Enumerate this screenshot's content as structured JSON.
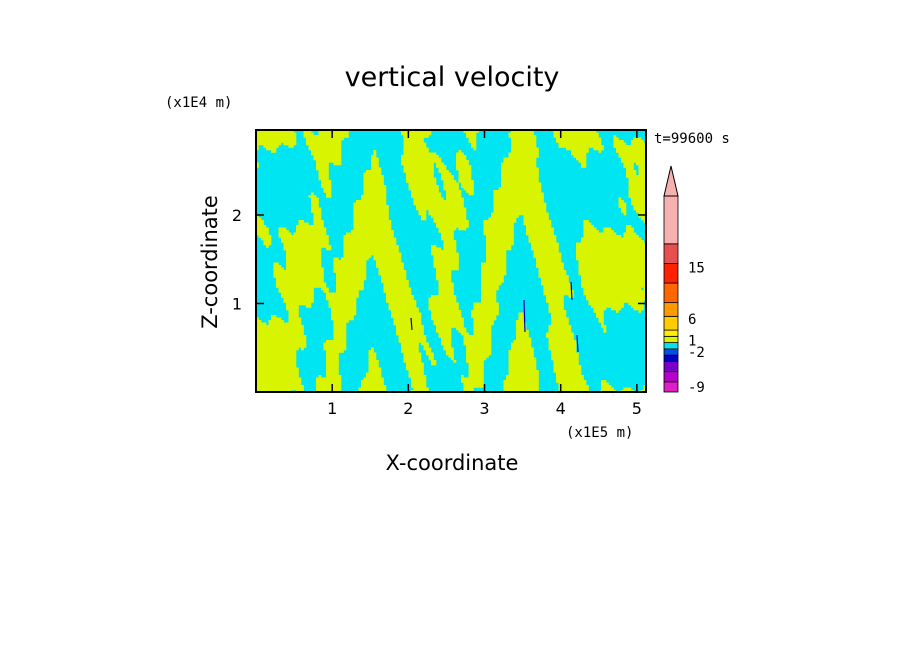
{
  "chart_data": {
    "type": "heatmap",
    "title": "vertical velocity",
    "time_label": "t=99600 s",
    "xlabel": "X-coordinate",
    "ylabel": "Z-coordinate",
    "x_unit": "(x1E5 m)",
    "y_unit": "(x1E4 m)",
    "xlim": [
      0,
      5.12
    ],
    "ylim": [
      0,
      2.96
    ],
    "x_ticks": [
      {
        "value": 1,
        "label": "1"
      },
      {
        "value": 2,
        "label": "2"
      },
      {
        "value": 3,
        "label": "3"
      },
      {
        "value": 4,
        "label": "4"
      },
      {
        "value": 5,
        "label": "5"
      }
    ],
    "y_ticks": [
      {
        "value": 1,
        "label": "1"
      },
      {
        "value": 2,
        "label": "2"
      }
    ],
    "field_colors": {
      "negative_small": "#00e5f2",
      "positive_small": "#d8f400",
      "strong_negative": "#0000c8"
    },
    "colorbar": {
      "levels": [
        {
          "color": "#e01ec8"
        },
        {
          "color": "#b400c8"
        },
        {
          "color": "#7800c8"
        },
        {
          "color": "#0000c8"
        },
        {
          "color": "#0050e6"
        },
        {
          "color": "#00e5f2"
        },
        {
          "color": "#d8f400"
        },
        {
          "color": "#ffee00"
        },
        {
          "color": "#ffcc00"
        },
        {
          "color": "#ff9900"
        },
        {
          "color": "#ff6600"
        },
        {
          "color": "#ff2200"
        },
        {
          "color": "#e85050"
        },
        {
          "color": "#f7b0b0"
        }
      ],
      "labels": [
        {
          "level_index": 0.5,
          "text": "-9"
        },
        {
          "level_index": 4.5,
          "text": "-2"
        },
        {
          "level_index": 6.3,
          "text": "1"
        },
        {
          "level_index": 8.8,
          "text": "6"
        },
        {
          "level_index": 11.8,
          "text": "15"
        }
      ],
      "extend": "max"
    }
  }
}
